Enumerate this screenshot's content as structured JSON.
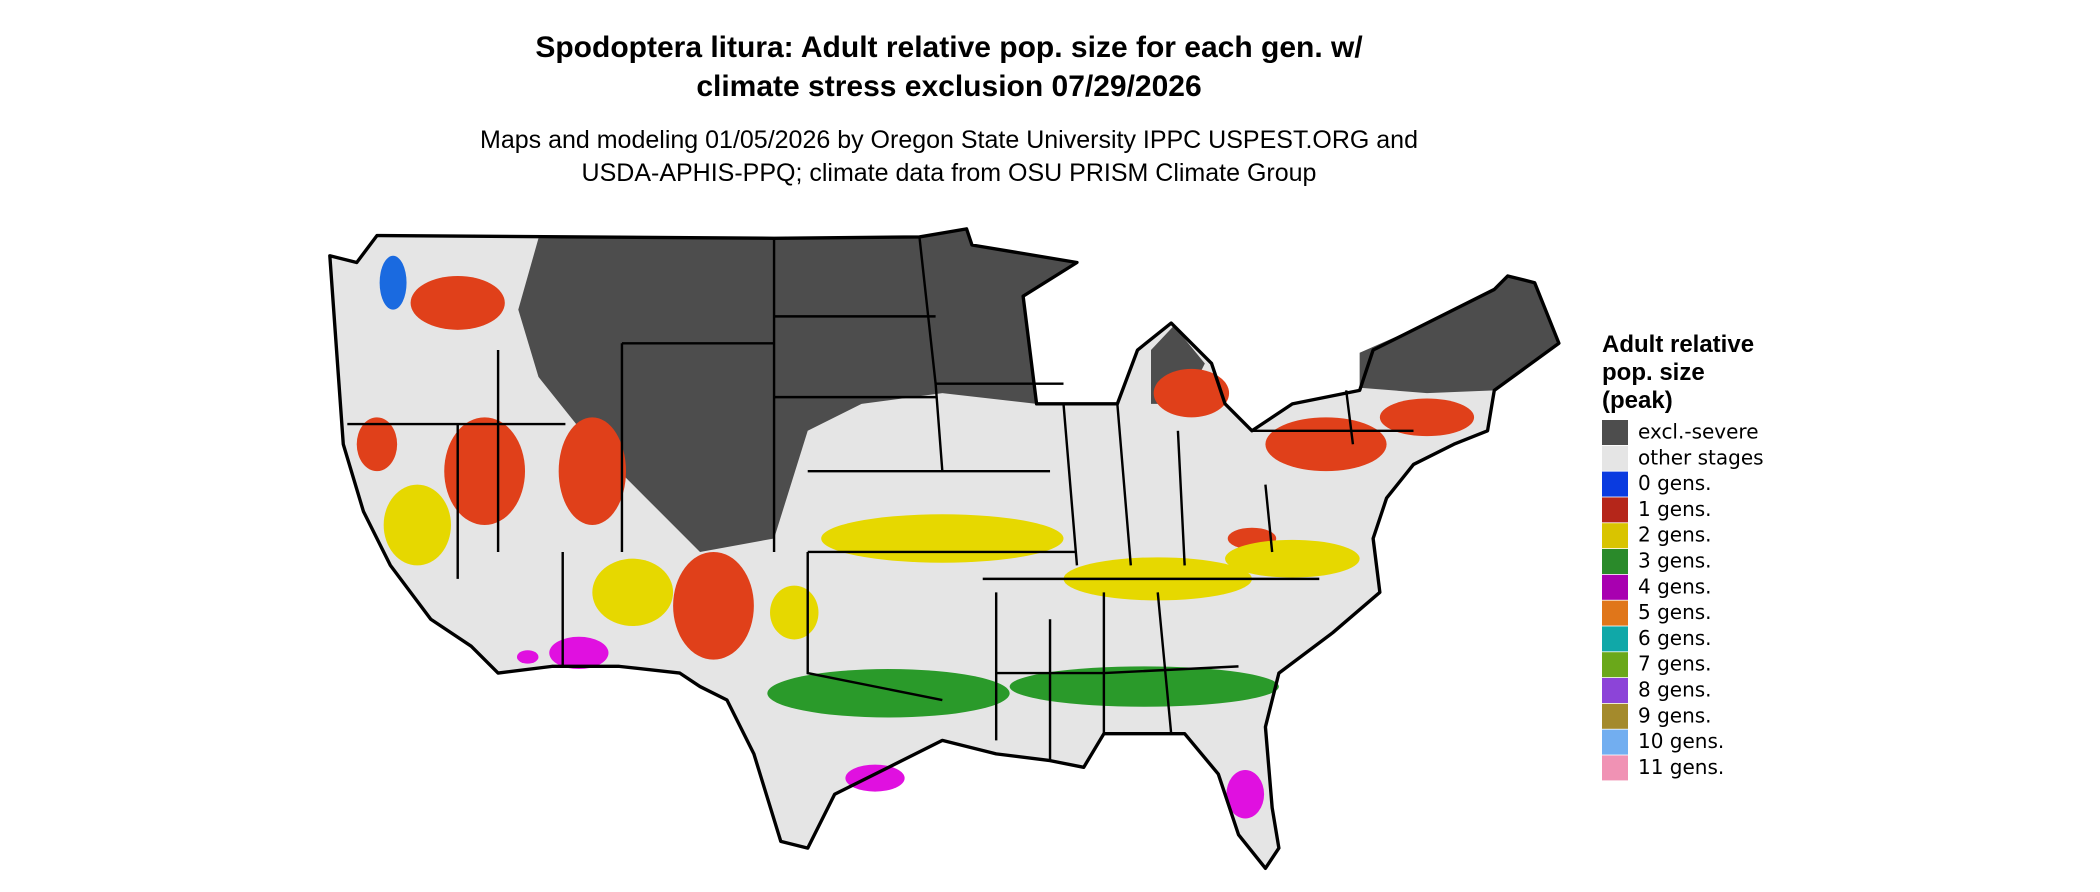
{
  "title": [
    "Spodoptera litura: Adult relative pop. size for each gen. w/",
    "climate stress exclusion 07/29/2026"
  ],
  "subtitle": [
    "Maps and modeling 01/05/2026 by Oregon State University IPPC USPEST.ORG and",
    "USDA-APHIS-PPQ; climate data from OSU PRISM Climate Group"
  ],
  "legend": {
    "title": [
      "Adult relative",
      "pop. size",
      "(peak)"
    ],
    "items": [
      {
        "label": "excl.-severe",
        "color": "#4d4d4d"
      },
      {
        "label": "other stages",
        "color": "#e5e5e5"
      },
      {
        "label": "0 gens.",
        "color": "#0a3be0"
      },
      {
        "label": "1 gens.",
        "color": "#b5261a"
      },
      {
        "label": "2 gens.",
        "color": "#d9c400"
      },
      {
        "label": "3 gens.",
        "color": "#2a8a2a"
      },
      {
        "label": "4 gens.",
        "color": "#a800b0"
      },
      {
        "label": "5 gens.",
        "color": "#e0761a"
      },
      {
        "label": "6 gens.",
        "color": "#10a8a8"
      },
      {
        "label": "7 gens.",
        "color": "#6aa81a"
      },
      {
        "label": "8 gens.",
        "color": "#8c44d8"
      },
      {
        "label": "9 gens.",
        "color": "#a48a2c"
      },
      {
        "label": "10 gens.",
        "color": "#72aef0"
      },
      {
        "label": "11 gens.",
        "color": "#f092b4"
      }
    ]
  }
}
